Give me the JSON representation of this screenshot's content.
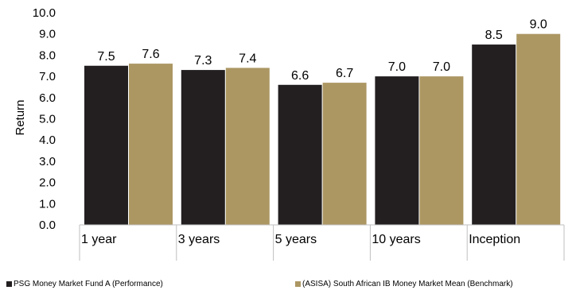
{
  "chart_data": {
    "type": "bar",
    "categories": [
      "1 year",
      "3 years",
      "5 years",
      "10 years",
      "Inception"
    ],
    "series": [
      {
        "name": "PSG Money Market Fund A (Performance)",
        "values": [
          7.5,
          7.3,
          6.6,
          7.0,
          8.5
        ],
        "color": "#231f20"
      },
      {
        "name": "(ASISA) South African IB Money Market Mean (Benchmark)",
        "values": [
          7.6,
          7.4,
          6.7,
          7.0,
          9.0
        ],
        "color": "#ac9763"
      }
    ],
    "ylabel": "Return",
    "ylim": [
      0,
      10
    ],
    "yticks": [
      "0.0",
      "1.0",
      "2.0",
      "3.0",
      "4.0",
      "5.0",
      "6.0",
      "7.0",
      "8.0",
      "9.0",
      "10.0"
    ],
    "grid": false,
    "legend_position": "bottom"
  }
}
